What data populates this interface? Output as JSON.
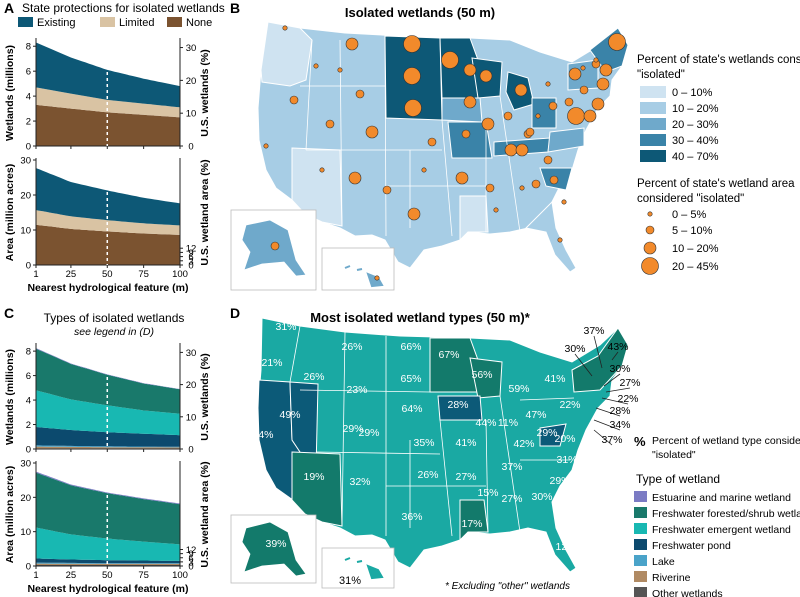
{
  "panel_letters": {
    "a": "A",
    "b": "B",
    "c": "C",
    "d": "D"
  },
  "colors": {
    "existing": "#0d5876",
    "limited": "#d9c3a3",
    "none": "#7b5330",
    "state_bins": [
      "#cfe3f1",
      "#a7cde5",
      "#6fa9cb",
      "#3a83a8",
      "#0d5876"
    ],
    "dot": "#f28a2b",
    "estuarine": "#7b7bc4",
    "forested": "#19796b",
    "emergent": "#18b8b2",
    "pond": "#0c4a6e",
    "lake": "#4aa3c9",
    "riverine": "#b08a63",
    "other": "#555555",
    "map_d_fill": "#1aa9a3",
    "map_d_pond": "#0c5a78",
    "map_d_forest": "#137a6b"
  },
  "panel_a": {
    "title": "State protections for isolated wetlands",
    "legend": [
      "Existing",
      "Limited",
      "None"
    ]
  },
  "panel_c": {
    "title": "Types of isolated wetlands",
    "subtitle": "see legend in (D)"
  },
  "panel_b": {
    "title": "Isolated wetlands (50 m)",
    "legend_fill_title": "Percent of state's wetlands considered \"isolated\"",
    "fill_bins": [
      "0 – 10%",
      "10 – 20%",
      "20 – 30%",
      "30 – 40%",
      "40 – 70%"
    ],
    "legend_dot_title": "Percent of state's wetland area considered \"isolated\"",
    "dot_bins": [
      "0 – 5%",
      "5 – 10%",
      "10 – 20%",
      "20 – 45%"
    ]
  },
  "panel_d": {
    "title": "Most isolated wetland types (50 m)*",
    "pct_symbol": "%",
    "pct_note": "Percent of wetland type considered \"isolated\"",
    "type_title": "Type of wetland",
    "types": [
      "Estuarine and marine wetland",
      "Freshwater forested/shrub wetland",
      "Freshwater emergent wetland",
      "Freshwater pond",
      "Lake",
      "Riverine",
      "Other wetlands"
    ],
    "footnote": "* Excluding \"other\" wetlands",
    "inland_labels": [
      "31%",
      "26%",
      "66%",
      "67%",
      "21%",
      "26%",
      "65%",
      "56%",
      "59%",
      "41%",
      "23%",
      "64%",
      "49%",
      "29%",
      "29%",
      "28%",
      "44%",
      "47%",
      "22%",
      "24%",
      "35%",
      "41%",
      "11%",
      "42%",
      "29%",
      "20%",
      "37%",
      "31%",
      "19%",
      "32%",
      "26%",
      "27%",
      "15%",
      "27%",
      "30%",
      "29%",
      "36%",
      "17%",
      "12%",
      "39%"
    ],
    "callout_labels": [
      "37%",
      "30%",
      "43%",
      "30%",
      "27%",
      "22%",
      "28%",
      "34%",
      "37%"
    ],
    "hawaii_label": "31%"
  },
  "chart_data": [
    {
      "id": "A-top",
      "type": "area",
      "stacked": true,
      "xlabel": "Nearest hydrological feature (m)",
      "ylabel": "Wetlands (millions)",
      "y2label": "U.S. wetlands (%)",
      "x": [
        1,
        25,
        50,
        75,
        100
      ],
      "xticks": [
        "1",
        "25",
        "50",
        "75",
        "100"
      ],
      "ylim": [
        0,
        8.5
      ],
      "yticks": [
        0,
        2,
        4,
        6,
        8
      ],
      "y2ticks": [
        "0",
        "10",
        "20",
        "30"
      ],
      "y2_per_y": 3.8,
      "marker_x": 50,
      "series": [
        {
          "name": "None",
          "color_key": "none",
          "values": [
            3.3,
            3.0,
            2.7,
            2.5,
            2.3
          ]
        },
        {
          "name": "Limited",
          "color_key": "limited",
          "values": [
            1.4,
            1.2,
            1.0,
            0.9,
            0.8
          ]
        },
        {
          "name": "Existing",
          "color_key": "existing",
          "values": [
            3.6,
            2.9,
            2.4,
            2.0,
            1.7
          ]
        }
      ]
    },
    {
      "id": "A-bottom",
      "type": "area",
      "stacked": true,
      "xlabel": "Nearest hydrological feature (m)",
      "ylabel": "Area (million acres)",
      "y2label": "U.S. wetland area (%)",
      "x": [
        1,
        25,
        50,
        75,
        100
      ],
      "xticks": [
        "1",
        "25",
        "50",
        "75",
        "100"
      ],
      "ylim": [
        0,
        30
      ],
      "yticks": [
        0,
        10,
        20,
        30
      ],
      "y2ticks": [
        "0",
        "3",
        "6",
        "9",
        "12"
      ],
      "y2_per_y": 2.5,
      "marker_x": 50,
      "series": [
        {
          "name": "None",
          "color_key": "none",
          "values": [
            11.5,
            10.3,
            9.6,
            9.0,
            8.6
          ]
        },
        {
          "name": "Limited",
          "color_key": "limited",
          "values": [
            4.2,
            3.6,
            3.2,
            2.9,
            2.7
          ]
        },
        {
          "name": "Existing",
          "color_key": "existing",
          "values": [
            12.0,
            9.8,
            8.5,
            7.3,
            6.3
          ]
        }
      ]
    },
    {
      "id": "C-top",
      "type": "area",
      "stacked": true,
      "xlabel": "Nearest hydrological feature (m)",
      "ylabel": "Wetlands (millions)",
      "y2label": "U.S. wetlands (%)",
      "x": [
        1,
        25,
        50,
        75,
        100
      ],
      "xticks": [
        "1",
        "25",
        "50",
        "75",
        "100"
      ],
      "ylim": [
        0,
        8.5
      ],
      "yticks": [
        0,
        2,
        4,
        6,
        8
      ],
      "y2ticks": [
        "0",
        "10",
        "20",
        "30"
      ],
      "y2_per_y": 3.8,
      "marker_x": 50,
      "series": [
        {
          "name": "Other wetlands",
          "color_key": "other",
          "values": [
            0.05,
            0.05,
            0.05,
            0.05,
            0.05
          ]
        },
        {
          "name": "Riverine",
          "color_key": "riverine",
          "values": [
            0.15,
            0.12,
            0.1,
            0.09,
            0.08
          ]
        },
        {
          "name": "Lake",
          "color_key": "lake",
          "values": [
            0.1,
            0.08,
            0.07,
            0.06,
            0.05
          ]
        },
        {
          "name": "Freshwater pond",
          "color_key": "pond",
          "values": [
            1.5,
            1.3,
            1.15,
            1.05,
            0.95
          ]
        },
        {
          "name": "Freshwater emergent wetland",
          "color_key": "emergent",
          "values": [
            3.0,
            2.5,
            2.2,
            1.9,
            1.75
          ]
        },
        {
          "name": "Freshwater forested/shrub wetland",
          "color_key": "forested",
          "values": [
            3.4,
            2.9,
            2.5,
            2.2,
            2.0
          ]
        },
        {
          "name": "Estuarine and marine wetland",
          "color_key": "estuarine",
          "values": [
            0.05,
            0.04,
            0.03,
            0.03,
            0.02
          ]
        }
      ]
    },
    {
      "id": "C-bottom",
      "type": "area",
      "stacked": true,
      "xlabel": "Nearest hydrological feature (m)",
      "ylabel": "Area (million acres)",
      "y2label": "U.S. wetland area (%)",
      "x": [
        1,
        25,
        50,
        75,
        100
      ],
      "xticks": [
        "1",
        "25",
        "50",
        "75",
        "100"
      ],
      "ylim": [
        0,
        30
      ],
      "yticks": [
        0,
        10,
        20,
        30
      ],
      "y2ticks": [
        "0",
        "3",
        "6",
        "9",
        "12"
      ],
      "y2_per_y": 2.5,
      "marker_x": 50,
      "series": [
        {
          "name": "Other wetlands",
          "color_key": "other",
          "values": [
            0.3,
            0.3,
            0.3,
            0.3,
            0.3
          ]
        },
        {
          "name": "Riverine",
          "color_key": "riverine",
          "values": [
            0.4,
            0.35,
            0.3,
            0.3,
            0.3
          ]
        },
        {
          "name": "Lake",
          "color_key": "lake",
          "values": [
            0.3,
            0.25,
            0.2,
            0.2,
            0.2
          ]
        },
        {
          "name": "Freshwater pond",
          "color_key": "pond",
          "values": [
            1.2,
            1.0,
            0.9,
            0.8,
            0.7
          ]
        },
        {
          "name": "Freshwater emergent wetland",
          "color_key": "emergent",
          "values": [
            9.0,
            7.3,
            6.3,
            5.5,
            4.8
          ]
        },
        {
          "name": "Freshwater forested/shrub wetland",
          "color_key": "forested",
          "values": [
            16.0,
            14.3,
            13.2,
            12.4,
            11.7
          ]
        },
        {
          "name": "Estuarine and marine wetland",
          "color_key": "estuarine",
          "values": [
            0.3,
            0.25,
            0.2,
            0.2,
            0.2
          ]
        }
      ]
    }
  ]
}
